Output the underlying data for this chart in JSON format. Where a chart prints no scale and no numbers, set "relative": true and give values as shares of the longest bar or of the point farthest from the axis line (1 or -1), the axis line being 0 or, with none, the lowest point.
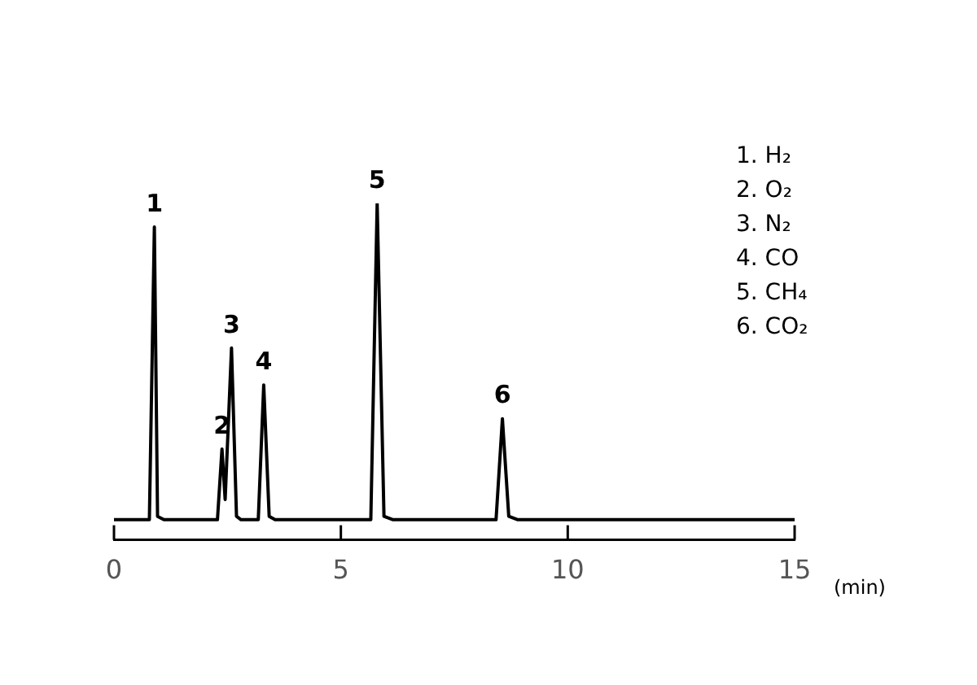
{
  "chart_data": {
    "type": "line",
    "relative": true,
    "xlabel": "(min)",
    "x": [
      0,
      0.78,
      0.89,
      0.96,
      1.1,
      2.28,
      2.38,
      2.45,
      2.59,
      2.7,
      2.8,
      3.18,
      3.3,
      3.42,
      3.55,
      5.66,
      5.8,
      5.95,
      6.15,
      8.42,
      8.56,
      8.7,
      8.9,
      15
    ],
    "series": [
      {
        "color": "#000000",
        "values": [
          0.06,
          0.06,
          0.93,
          0.07,
          0.06,
          0.06,
          0.27,
          0.12,
          0.57,
          0.07,
          0.06,
          0.06,
          0.46,
          0.07,
          0.06,
          0.06,
          1,
          0.07,
          0.06,
          0.06,
          0.36,
          0.07,
          0.06,
          0.06
        ]
      }
    ],
    "xlim": [
      0,
      15
    ],
    "xticks": [
      0,
      5,
      10,
      15
    ],
    "grid": false,
    "legend": false,
    "marker": "none",
    "line_style": "solid",
    "annotations": [
      {
        "text": "1",
        "x": 0.89,
        "y": 0.93
      },
      {
        "text": "2",
        "x": 2.38,
        "y": 0.27
      },
      {
        "text": "3",
        "x": 2.59,
        "y": 0.57
      },
      {
        "text": "4",
        "x": 3.3,
        "y": 0.46
      },
      {
        "text": "5",
        "x": 5.8,
        "y": 1
      },
      {
        "text": "6",
        "x": 8.56,
        "y": 0.36
      },
      "1. H₂",
      "2. O₂",
      "3. N₂",
      "4. CO",
      "5. CH₄",
      "6. CO₂"
    ]
  }
}
